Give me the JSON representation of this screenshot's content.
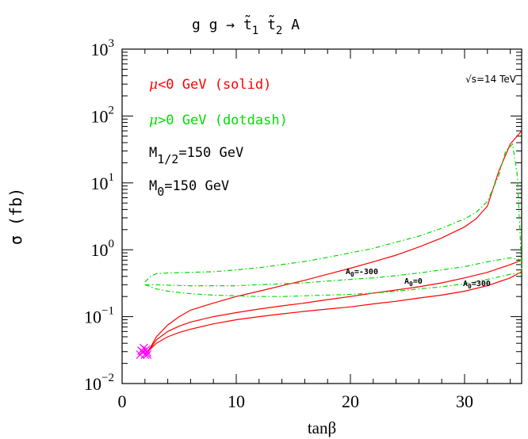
{
  "chart_data": {
    "type": "line",
    "title": {
      "base": "g g → t̃",
      "sub1": "1",
      "mid": " t̃",
      "sub2": "2",
      "end": " A"
    },
    "xlabel": "tanβ",
    "ylabel": "σ (fb)",
    "xlim": [
      0,
      35
    ],
    "ylim_log10": [
      -2,
      3
    ],
    "yscale": "log",
    "x_ticks": [
      0,
      10,
      20,
      30
    ],
    "y_ticks": [
      {
        "exp": -2,
        "base": "10",
        "sup": "−2"
      },
      {
        "exp": -1,
        "base": "10",
        "sup": "−1"
      },
      {
        "exp": 0,
        "base": "10",
        "sup": "0"
      },
      {
        "exp": 1,
        "base": "10",
        "sup": "1"
      },
      {
        "exp": 2,
        "base": "10",
        "sup": "2"
      },
      {
        "exp": 3,
        "base": "10",
        "sup": "3"
      }
    ],
    "annotations": {
      "energy": "√s=14 TeV",
      "a0_m300": {
        "prefix": "A",
        "sub": "0",
        "suffix": "=-300"
      },
      "a0_0": {
        "prefix": "A",
        "sub": "0",
        "suffix": "=0"
      },
      "a0_300": {
        "prefix": "A",
        "sub": "0",
        "suffix": "=300"
      }
    },
    "legend": {
      "mu_neg": {
        "sym": "μ",
        "text": "<0 GeV (solid)",
        "color": "#ff0000"
      },
      "mu_pos": {
        "sym": "μ",
        "text": ">0 GeV (dotdash)",
        "color": "#00dd00"
      },
      "m_half": {
        "base": "M",
        "sub": "1/2",
        "text": "=150 GeV"
      },
      "m_zero": {
        "base": "M",
        "sub": "0",
        "text": "=150 GeV"
      }
    },
    "series": [
      {
        "style": "solid",
        "color": "#ff0000",
        "points": [
          [
            2,
            0.027
          ],
          [
            2.5,
            0.035
          ],
          [
            3,
            0.05
          ],
          [
            4,
            0.075
          ],
          [
            5,
            0.1
          ],
          [
            6,
            0.125
          ],
          [
            8,
            0.16
          ],
          [
            10,
            0.2
          ],
          [
            12,
            0.24
          ],
          [
            14,
            0.29
          ],
          [
            16,
            0.35
          ],
          [
            18,
            0.43
          ],
          [
            20,
            0.53
          ],
          [
            22,
            0.66
          ],
          [
            24,
            0.83
          ],
          [
            26,
            1.1
          ],
          [
            28,
            1.5
          ],
          [
            30,
            2.2
          ],
          [
            31,
            2.9
          ],
          [
            32,
            4.5
          ],
          [
            33,
            15
          ],
          [
            34,
            38
          ],
          [
            35,
            60
          ]
        ]
      },
      {
        "style": "solid",
        "color": "#ff0000",
        "points": [
          [
            2,
            0.027
          ],
          [
            2.5,
            0.034
          ],
          [
            3,
            0.045
          ],
          [
            4,
            0.06
          ],
          [
            5,
            0.072
          ],
          [
            6,
            0.083
          ],
          [
            8,
            0.1
          ],
          [
            10,
            0.115
          ],
          [
            12,
            0.13
          ],
          [
            14,
            0.145
          ],
          [
            16,
            0.16
          ],
          [
            18,
            0.18
          ],
          [
            20,
            0.2
          ],
          [
            22,
            0.225
          ],
          [
            24,
            0.25
          ],
          [
            26,
            0.28
          ],
          [
            28,
            0.32
          ],
          [
            30,
            0.38
          ],
          [
            32,
            0.46
          ],
          [
            34,
            0.6
          ],
          [
            35,
            0.7
          ]
        ]
      },
      {
        "style": "solid",
        "color": "#ff0000",
        "points": [
          [
            2,
            0.027
          ],
          [
            2.5,
            0.033
          ],
          [
            3,
            0.04
          ],
          [
            4,
            0.05
          ],
          [
            5,
            0.058
          ],
          [
            6,
            0.065
          ],
          [
            8,
            0.078
          ],
          [
            10,
            0.09
          ],
          [
            12,
            0.1
          ],
          [
            14,
            0.11
          ],
          [
            16,
            0.12
          ],
          [
            18,
            0.13
          ],
          [
            20,
            0.14
          ],
          [
            22,
            0.155
          ],
          [
            24,
            0.17
          ],
          [
            26,
            0.19
          ],
          [
            28,
            0.21
          ],
          [
            30,
            0.24
          ],
          [
            32,
            0.29
          ],
          [
            34,
            0.38
          ],
          [
            35,
            0.47
          ]
        ]
      },
      {
        "style": "dotdash",
        "color": "#00dd00",
        "points": [
          [
            2,
            0.33
          ],
          [
            2.5,
            0.4
          ],
          [
            3,
            0.44
          ],
          [
            4,
            0.45
          ],
          [
            6,
            0.46
          ],
          [
            8,
            0.47
          ],
          [
            10,
            0.5
          ],
          [
            12,
            0.54
          ],
          [
            14,
            0.6
          ],
          [
            16,
            0.67
          ],
          [
            18,
            0.77
          ],
          [
            20,
            0.9
          ],
          [
            22,
            1.05
          ],
          [
            24,
            1.3
          ],
          [
            26,
            1.6
          ],
          [
            28,
            2.1
          ],
          [
            30,
            2.9
          ],
          [
            31,
            3.6
          ],
          [
            32,
            5.3
          ],
          [
            33,
            13
          ],
          [
            33.6,
            30
          ],
          [
            34.2,
            38
          ],
          [
            34.6,
            14
          ],
          [
            34.8,
            3
          ],
          [
            35,
            0.5
          ]
        ]
      },
      {
        "style": "dotdash",
        "color": "#00dd00",
        "points": [
          [
            2,
            0.3
          ],
          [
            2.5,
            0.3
          ],
          [
            3,
            0.3
          ],
          [
            4,
            0.295
          ],
          [
            6,
            0.29
          ],
          [
            8,
            0.29
          ],
          [
            10,
            0.29
          ],
          [
            12,
            0.3
          ],
          [
            14,
            0.31
          ],
          [
            16,
            0.32
          ],
          [
            18,
            0.34
          ],
          [
            20,
            0.36
          ],
          [
            22,
            0.38
          ],
          [
            24,
            0.41
          ],
          [
            26,
            0.45
          ],
          [
            28,
            0.5
          ],
          [
            30,
            0.56
          ],
          [
            32,
            0.66
          ],
          [
            34,
            0.76
          ],
          [
            35,
            0.7
          ]
        ]
      },
      {
        "style": "dotdash",
        "color": "#00dd00",
        "points": [
          [
            2,
            0.3
          ],
          [
            2.5,
            0.28
          ],
          [
            3,
            0.26
          ],
          [
            4,
            0.24
          ],
          [
            6,
            0.22
          ],
          [
            8,
            0.21
          ],
          [
            10,
            0.205
          ],
          [
            12,
            0.2
          ],
          [
            14,
            0.2
          ],
          [
            16,
            0.205
          ],
          [
            18,
            0.21
          ],
          [
            20,
            0.215
          ],
          [
            22,
            0.225
          ],
          [
            24,
            0.24
          ],
          [
            26,
            0.26
          ],
          [
            28,
            0.28
          ],
          [
            30,
            0.31
          ],
          [
            32,
            0.36
          ],
          [
            34,
            0.43
          ],
          [
            35,
            0.45
          ]
        ]
      }
    ],
    "markers": {
      "color": "#ff00ff",
      "symbol": "x",
      "points": [
        [
          1.6,
          0.027
        ],
        [
          2.0,
          0.027
        ],
        [
          2.2,
          0.027
        ],
        [
          1.8,
          0.03
        ],
        [
          2.1,
          0.032
        ],
        [
          1.9,
          0.034
        ],
        [
          2.2,
          0.029
        ],
        [
          1.7,
          0.031
        ]
      ]
    }
  }
}
